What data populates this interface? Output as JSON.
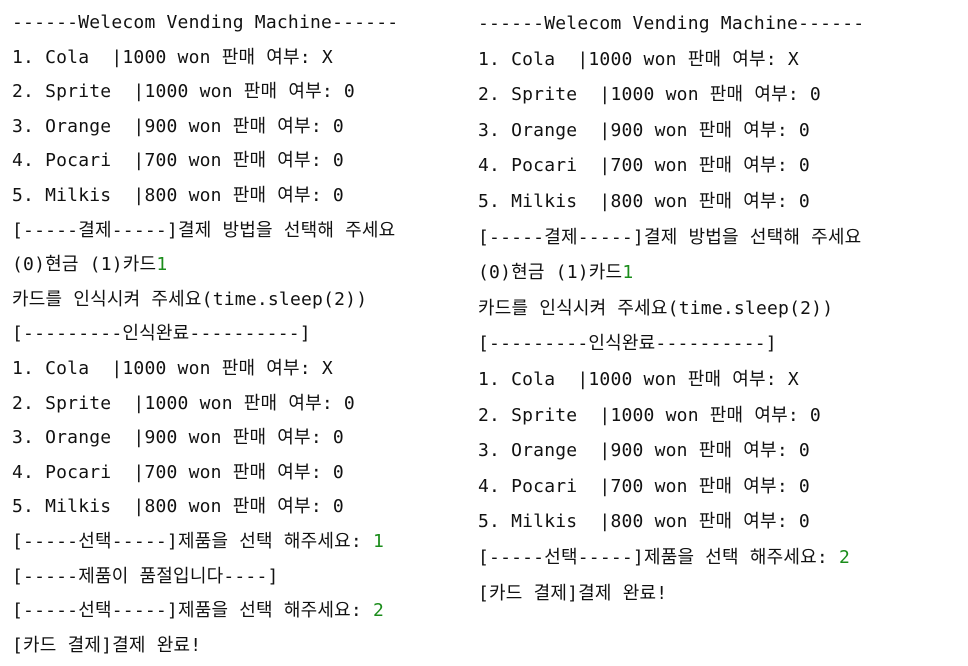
{
  "left_terminal": {
    "lines": [
      {
        "text": "------Welecom Vending Machine------",
        "input": ""
      },
      {
        "text": "1. Cola  |1000 won 판매 여부: X",
        "input": ""
      },
      {
        "text": "2. Sprite  |1000 won 판매 여부: 0",
        "input": ""
      },
      {
        "text": "3. Orange  |900 won 판매 여부: 0",
        "input": ""
      },
      {
        "text": "4. Pocari  |700 won 판매 여부: 0",
        "input": ""
      },
      {
        "text": "5. Milkis  |800 won 판매 여부: 0",
        "input": ""
      },
      {
        "text": "[-----결제-----]결제 방법을 선택해 주세요",
        "input": ""
      },
      {
        "text": "(0)현금 (1)카드",
        "input": "1"
      },
      {
        "text": "카드를 인식시켜 주세요(time.sleep(2))",
        "input": ""
      },
      {
        "text": "[---------인식완료----------]",
        "input": ""
      },
      {
        "text": "1. Cola  |1000 won 판매 여부: X",
        "input": ""
      },
      {
        "text": "2. Sprite  |1000 won 판매 여부: 0",
        "input": ""
      },
      {
        "text": "3. Orange  |900 won 판매 여부: 0",
        "input": ""
      },
      {
        "text": "4. Pocari  |700 won 판매 여부: 0",
        "input": ""
      },
      {
        "text": "5. Milkis  |800 won 판매 여부: 0",
        "input": ""
      },
      {
        "text": "[-----선택-----]제품을 선택 해주세요: ",
        "input": "1"
      },
      {
        "text": "[-----제품이 품절입니다----]",
        "input": ""
      },
      {
        "text": "[-----선택-----]제품을 선택 해주세요: ",
        "input": "2"
      },
      {
        "text": "[카드 결제]결제 완료!",
        "input": ""
      }
    ]
  },
  "right_terminal": {
    "lines": [
      {
        "text": "------Welecom Vending Machine------",
        "input": ""
      },
      {
        "text": "1. Cola  |1000 won 판매 여부: X",
        "input": ""
      },
      {
        "text": "2. Sprite  |1000 won 판매 여부: 0",
        "input": ""
      },
      {
        "text": "3. Orange  |900 won 판매 여부: 0",
        "input": ""
      },
      {
        "text": "4. Pocari  |700 won 판매 여부: 0",
        "input": ""
      },
      {
        "text": "5. Milkis  |800 won 판매 여부: 0",
        "input": ""
      },
      {
        "text": "[-----결제-----]결제 방법을 선택해 주세요",
        "input": ""
      },
      {
        "text": "(0)현금 (1)카드",
        "input": "1"
      },
      {
        "text": "카드를 인식시켜 주세요(time.sleep(2))",
        "input": ""
      },
      {
        "text": "[---------인식완료----------]",
        "input": ""
      },
      {
        "text": "1. Cola  |1000 won 판매 여부: X",
        "input": ""
      },
      {
        "text": "2. Sprite  |1000 won 판매 여부: 0",
        "input": ""
      },
      {
        "text": "3. Orange  |900 won 판매 여부: 0",
        "input": ""
      },
      {
        "text": "4. Pocari  |700 won 판매 여부: 0",
        "input": ""
      },
      {
        "text": "5. Milkis  |800 won 판매 여부: 0",
        "input": ""
      },
      {
        "text": "[-----선택-----]제품을 선택 해주세요: ",
        "input": "2"
      },
      {
        "text": "[카드 결제]결제 완료!",
        "input": ""
      }
    ]
  },
  "colors": {
    "text": "#111111",
    "input": "#1a8c1a",
    "background": "#ffffff"
  }
}
